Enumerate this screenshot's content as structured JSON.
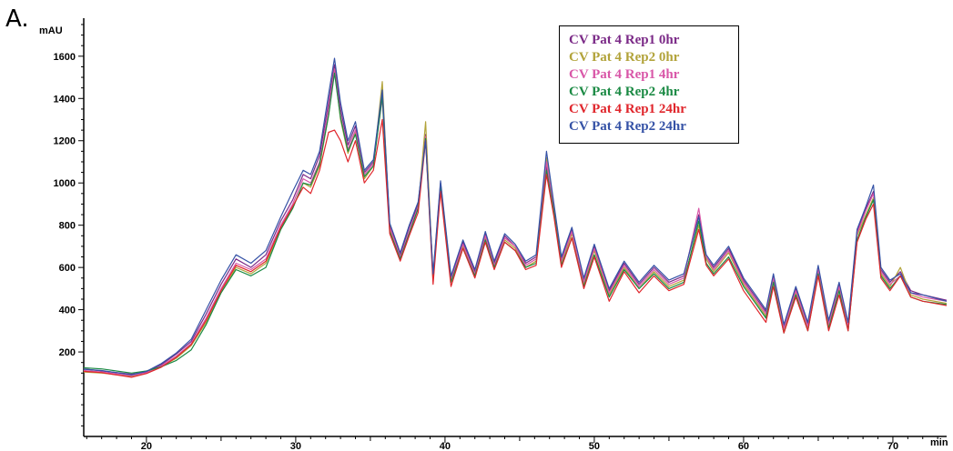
{
  "panel_label": "A.",
  "chart_data": {
    "type": "line",
    "title": "",
    "ylabel": "mAU",
    "xlabel": "min",
    "xlim": [
      15.8,
      73.6
    ],
    "ylim": [
      -200,
      1780
    ],
    "x_ticks": [
      20,
      30,
      40,
      50,
      60,
      70
    ],
    "y_ticks": [
      200,
      400,
      600,
      800,
      1000,
      1200,
      1400,
      1600
    ],
    "grid": false,
    "legend_position": "top-right",
    "series": [
      {
        "name": "CV Pat 4 Rep1 0hr",
        "color": "#7b2a87",
        "x": [
          15.8,
          17,
          19,
          20,
          21,
          22,
          23,
          24,
          25,
          26,
          27,
          28,
          29,
          29.8,
          30.5,
          31,
          31.6,
          32.2,
          32.6,
          33,
          33.5,
          34,
          34.6,
          35.2,
          35.8,
          36.3,
          37,
          37.6,
          38.2,
          38.7,
          39.2,
          39.7,
          40.4,
          41.2,
          42,
          42.7,
          43.3,
          44,
          44.7,
          45.4,
          46.1,
          46.8,
          47.3,
          47.8,
          48.5,
          49.3,
          50,
          51,
          52,
          53,
          54,
          55,
          56,
          57,
          57.5,
          58,
          59,
          60,
          60.8,
          61.5,
          62,
          62.7,
          63.5,
          64.3,
          65,
          65.7,
          66.4,
          67,
          67.6,
          68.2,
          68.7,
          69.2,
          69.8,
          70.5,
          71.2,
          72,
          73.6
        ],
        "y": [
          120,
          110,
          95,
          105,
          140,
          190,
          250,
          380,
          520,
          640,
          600,
          660,
          820,
          920,
          1040,
          1020,
          1130,
          1380,
          1560,
          1350,
          1180,
          1270,
          1050,
          1100,
          1420,
          800,
          660,
          790,
          900,
          1230,
          560,
          1000,
          550,
          720,
          580,
          760,
          620,
          750,
          700,
          620,
          650,
          1080,
          860,
          640,
          780,
          540,
          700,
          490,
          620,
          520,
          600,
          530,
          560,
          850,
          650,
          600,
          690,
          540,
          460,
          390,
          560,
          320,
          500,
          330,
          600,
          340,
          520,
          330,
          770,
          880,
          960,
          590,
          530,
          580,
          490,
          470,
          445
        ]
      },
      {
        "name": "CV Pat 4 Rep2 0hr",
        "color": "#b2a33a",
        "x": [
          15.8,
          17,
          19,
          20,
          21,
          22,
          23,
          24,
          25,
          26,
          27,
          28,
          29,
          29.8,
          30.5,
          31,
          31.6,
          32.2,
          32.6,
          33,
          33.5,
          34,
          34.6,
          35.2,
          35.8,
          36.3,
          37,
          37.6,
          38.2,
          38.7,
          39.2,
          39.7,
          40.4,
          41.2,
          42,
          42.7,
          43.3,
          44,
          44.7,
          45.4,
          46.1,
          46.8,
          47.3,
          47.8,
          48.5,
          49.3,
          50,
          51,
          52,
          53,
          54,
          55,
          56,
          57,
          57.5,
          58,
          59,
          60,
          60.8,
          61.5,
          62,
          62.7,
          63.5,
          64.3,
          65,
          65.7,
          66.4,
          67,
          67.6,
          68.2,
          68.7,
          69.2,
          69.8,
          70.5,
          71.2,
          72,
          73.6
        ],
        "y": [
          105,
          100,
          85,
          100,
          130,
          170,
          230,
          340,
          480,
          600,
          570,
          620,
          780,
          880,
          1000,
          980,
          1080,
          1320,
          1540,
          1300,
          1140,
          1240,
          1020,
          1080,
          1480,
          780,
          640,
          760,
          880,
          1290,
          540,
          980,
          530,
          700,
          560,
          740,
          600,
          730,
          690,
          600,
          630,
          1120,
          880,
          620,
          760,
          520,
          680,
          470,
          600,
          500,
          580,
          510,
          540,
          800,
          640,
          580,
          670,
          520,
          440,
          370,
          540,
          300,
          480,
          310,
          580,
          320,
          500,
          310,
          750,
          850,
          930,
          570,
          510,
          600,
          470,
          450,
          430
        ]
      },
      {
        "name": "CV Pat 4 Rep1 4hr",
        "color": "#d957a8",
        "x": [
          15.8,
          17,
          19,
          20,
          21,
          22,
          23,
          24,
          25,
          26,
          27,
          28,
          29,
          29.8,
          30.5,
          31,
          31.6,
          32.2,
          32.6,
          33,
          33.5,
          34,
          34.6,
          35.2,
          35.8,
          36.3,
          37,
          37.6,
          38.2,
          38.7,
          39.2,
          39.7,
          40.4,
          41.2,
          42,
          42.7,
          43.3,
          44,
          44.7,
          45.4,
          46.1,
          46.8,
          47.3,
          47.8,
          48.5,
          49.3,
          50,
          51,
          52,
          53,
          54,
          55,
          56,
          57,
          57.5,
          58,
          59,
          60,
          60.8,
          61.5,
          62,
          62.7,
          63.5,
          64.3,
          65,
          65.7,
          66.4,
          67,
          67.6,
          68.2,
          68.7,
          69.2,
          69.8,
          70.5,
          71.2,
          72,
          73.6
        ],
        "y": [
          112,
          105,
          88,
          102,
          135,
          180,
          240,
          360,
          500,
          620,
          590,
          640,
          800,
          900,
          1020,
          1000,
          1100,
          1350,
          1540,
          1320,
          1160,
          1250,
          1040,
          1090,
          1400,
          790,
          650,
          770,
          890,
          1220,
          550,
          990,
          540,
          710,
          570,
          750,
          610,
          740,
          700,
          610,
          640,
          1100,
          870,
          630,
          770,
          530,
          690,
          480,
          610,
          510,
          590,
          520,
          550,
          880,
          650,
          590,
          680,
          530,
          450,
          380,
          550,
          310,
          490,
          320,
          590,
          330,
          510,
          320,
          760,
          870,
          950,
          580,
          520,
          560,
          480,
          460,
          440
        ]
      },
      {
        "name": "CV Pat 4 Rep2 4hr",
        "color": "#1b8a44",
        "x": [
          15.8,
          17,
          19,
          20,
          21,
          22,
          23,
          24,
          25,
          26,
          27,
          28,
          29,
          29.8,
          30.5,
          31,
          31.6,
          32.2,
          32.6,
          33,
          33.5,
          34,
          34.6,
          35.2,
          35.8,
          36.3,
          37,
          37.6,
          38.2,
          38.7,
          39.2,
          39.7,
          40.4,
          41.2,
          42,
          42.7,
          43.3,
          44,
          44.7,
          45.4,
          46.1,
          46.8,
          47.3,
          47.8,
          48.5,
          49.3,
          50,
          51,
          52,
          53,
          54,
          55,
          56,
          57,
          57.5,
          58,
          59,
          60,
          60.8,
          61.5,
          62,
          62.7,
          63.5,
          64.3,
          65,
          65.7,
          66.4,
          67,
          67.6,
          68.2,
          68.7,
          69.2,
          69.8,
          70.5,
          71.2,
          72,
          73.6
        ],
        "y": [
          125,
          120,
          100,
          110,
          130,
          160,
          210,
          330,
          480,
          590,
          560,
          600,
          780,
          880,
          1000,
          990,
          1090,
          1320,
          1520,
          1310,
          1150,
          1230,
          1030,
          1080,
          1410,
          770,
          640,
          760,
          880,
          1210,
          540,
          980,
          530,
          690,
          560,
          730,
          600,
          720,
          680,
          600,
          620,
          1060,
          860,
          610,
          740,
          510,
          660,
          460,
          590,
          500,
          570,
          500,
          530,
          820,
          620,
          570,
          650,
          510,
          430,
          360,
          530,
          290,
          470,
          300,
          570,
          310,
          490,
          300,
          730,
          840,
          920,
          560,
          500,
          560,
          460,
          440,
          425
        ]
      },
      {
        "name": "CV Pat 4 Rep1 24hr",
        "color": "#e0262c",
        "x": [
          15.8,
          17,
          19,
          20,
          21,
          22,
          23,
          24,
          25,
          26,
          27,
          28,
          29,
          29.8,
          30.5,
          31,
          31.6,
          32.2,
          32.6,
          33,
          33.5,
          34,
          34.6,
          35.2,
          35.8,
          36.3,
          37,
          37.6,
          38.2,
          38.7,
          39.2,
          39.7,
          40.4,
          41.2,
          42,
          42.7,
          43.3,
          44,
          44.7,
          45.4,
          46.1,
          46.8,
          47.3,
          47.8,
          48.5,
          49.3,
          50,
          51,
          52,
          53,
          54,
          55,
          56,
          57,
          57.5,
          58,
          59,
          60,
          60.8,
          61.5,
          62,
          62.7,
          63.5,
          64.3,
          65,
          65.7,
          66.4,
          67,
          67.6,
          68.2,
          68.7,
          69.2,
          69.8,
          70.5,
          71.2,
          72,
          73.6
        ],
        "y": [
          108,
          102,
          80,
          98,
          128,
          175,
          235,
          350,
          490,
          610,
          580,
          630,
          790,
          890,
          980,
          950,
          1060,
          1240,
          1250,
          1200,
          1100,
          1200,
          1000,
          1060,
          1300,
          760,
          630,
          750,
          860,
          1200,
          520,
          960,
          510,
          690,
          550,
          720,
          590,
          720,
          680,
          590,
          610,
          1040,
          840,
          600,
          740,
          500,
          650,
          440,
          580,
          480,
          560,
          490,
          520,
          780,
          610,
          560,
          640,
          490,
          410,
          340,
          510,
          290,
          460,
          300,
          560,
          300,
          470,
          300,
          720,
          830,
          900,
          550,
          490,
          560,
          460,
          440,
          420
        ]
      },
      {
        "name": "CV Pat 4 Rep2 24hr",
        "color": "#3552a6",
        "x": [
          15.8,
          17,
          19,
          20,
          21,
          22,
          23,
          24,
          25,
          26,
          27,
          28,
          29,
          29.8,
          30.5,
          31,
          31.6,
          32.2,
          32.6,
          33,
          33.5,
          34,
          34.6,
          35.2,
          35.8,
          36.3,
          37,
          37.6,
          38.2,
          38.7,
          39.2,
          39.7,
          40.4,
          41.2,
          42,
          42.7,
          43.3,
          44,
          44.7,
          45.4,
          46.1,
          46.8,
          47.3,
          47.8,
          48.5,
          49.3,
          50,
          51,
          52,
          53,
          54,
          55,
          56,
          57,
          57.5,
          58,
          59,
          60,
          60.8,
          61.5,
          62,
          62.7,
          63.5,
          64.3,
          65,
          65.7,
          66.4,
          67,
          67.6,
          68.2,
          68.7,
          69.2,
          69.8,
          70.5,
          71.2,
          72,
          73.6
        ],
        "y": [
          118,
          112,
          92,
          108,
          145,
          195,
          260,
          400,
          540,
          660,
          620,
          680,
          840,
          960,
          1060,
          1040,
          1150,
          1420,
          1590,
          1380,
          1200,
          1290,
          1060,
          1110,
          1440,
          810,
          670,
          800,
          910,
          1200,
          570,
          1010,
          560,
          730,
          590,
          770,
          630,
          760,
          710,
          630,
          660,
          1150,
          900,
          650,
          790,
          550,
          710,
          500,
          630,
          530,
          610,
          540,
          570,
          840,
          660,
          610,
          700,
          550,
          470,
          400,
          570,
          330,
          510,
          340,
          610,
          350,
          530,
          340,
          780,
          890,
          990,
          600,
          540,
          570,
          480,
          470,
          440
        ]
      }
    ]
  }
}
